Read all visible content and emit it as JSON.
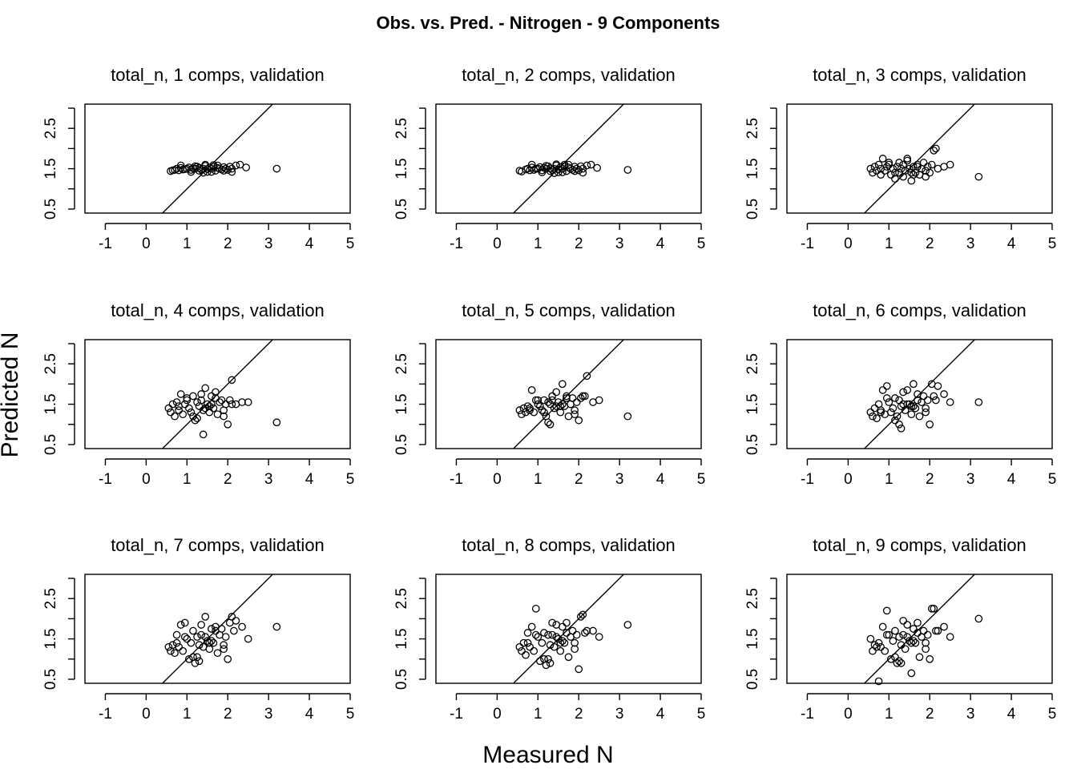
{
  "title": "Obs. vs. Pred. - Nitrogen - 9 Components",
  "xlabel": "Measured N",
  "ylabel": "Predicted N",
  "chart_data": {
    "type": "scatter",
    "title": "Obs. vs. Pred. - Nitrogen - 9 Components",
    "xlabel": "Measured N",
    "ylabel": "Predicted N",
    "xlim": [
      -1.5,
      5
    ],
    "ylim": [
      0.4,
      3.1
    ],
    "x_ticks": [
      "-1",
      "0",
      "1",
      "2",
      "3",
      "4",
      "5"
    ],
    "y_ticks": [
      "0.5",
      "1.5",
      "2.5"
    ],
    "reference_line": "y = x",
    "grid": false,
    "panels": [
      {
        "title": "total_n, 1 comps, validation",
        "x": [
          0.6,
          0.65,
          0.7,
          0.75,
          0.8,
          0.85,
          0.9,
          0.95,
          1.0,
          1.05,
          1.1,
          1.15,
          1.2,
          1.25,
          1.3,
          1.35,
          1.4,
          1.45,
          1.5,
          1.55,
          1.6,
          1.65,
          1.7,
          1.75,
          1.8,
          1.85,
          1.9,
          1.95,
          2.0,
          2.05,
          2.1,
          2.2,
          2.3,
          2.45,
          0.85,
          1.1,
          1.3,
          1.45,
          1.6,
          1.75,
          1.9,
          2.1,
          1.2,
          1.5,
          1.65,
          1.4,
          3.2
        ],
        "y": [
          1.44,
          1.46,
          1.47,
          1.5,
          1.46,
          1.52,
          1.48,
          1.49,
          1.5,
          1.53,
          1.47,
          1.51,
          1.5,
          1.55,
          1.52,
          1.48,
          1.5,
          1.57,
          1.49,
          1.53,
          1.5,
          1.55,
          1.45,
          1.52,
          1.5,
          1.48,
          1.54,
          1.5,
          1.47,
          1.55,
          1.5,
          1.58,
          1.6,
          1.53,
          1.58,
          1.42,
          1.45,
          1.6,
          1.42,
          1.58,
          1.45,
          1.42,
          1.56,
          1.42,
          1.59,
          1.4,
          1.5
        ]
      },
      {
        "title": "total_n, 2 comps, validation",
        "x": [
          0.55,
          0.6,
          0.7,
          0.75,
          0.8,
          0.85,
          0.9,
          0.95,
          1.0,
          1.05,
          1.1,
          1.15,
          1.2,
          1.25,
          1.3,
          1.35,
          1.4,
          1.45,
          1.5,
          1.55,
          1.6,
          1.65,
          1.7,
          1.75,
          1.8,
          1.85,
          1.9,
          1.95,
          2.0,
          2.05,
          2.1,
          2.2,
          2.3,
          2.45,
          0.85,
          1.1,
          1.3,
          1.45,
          1.6,
          1.75,
          1.9,
          2.1,
          1.2,
          1.5,
          1.65,
          1.4,
          3.2
        ],
        "y": [
          1.45,
          1.43,
          1.48,
          1.5,
          1.46,
          1.53,
          1.47,
          1.5,
          1.5,
          1.54,
          1.46,
          1.52,
          1.5,
          1.56,
          1.51,
          1.47,
          1.5,
          1.58,
          1.48,
          1.54,
          1.5,
          1.56,
          1.44,
          1.53,
          1.5,
          1.47,
          1.55,
          1.5,
          1.46,
          1.56,
          1.5,
          1.58,
          1.6,
          1.52,
          1.6,
          1.41,
          1.44,
          1.61,
          1.41,
          1.6,
          1.44,
          1.4,
          1.57,
          1.41,
          1.6,
          1.39,
          1.47
        ]
      },
      {
        "title": "total_n, 3 comps, validation",
        "x": [
          0.55,
          0.6,
          0.65,
          0.7,
          0.75,
          0.8,
          0.85,
          0.9,
          0.95,
          1.0,
          1.05,
          1.1,
          1.15,
          1.2,
          1.25,
          1.3,
          1.35,
          1.4,
          1.45,
          1.5,
          1.55,
          1.6,
          1.65,
          1.7,
          1.75,
          1.8,
          1.85,
          1.9,
          1.95,
          2.0,
          2.05,
          2.1,
          2.2,
          2.35,
          2.5,
          0.8,
          1.0,
          1.15,
          1.35,
          1.55,
          1.7,
          1.9,
          2.15,
          1.45,
          1.6,
          1.25,
          3.2
        ],
        "y": [
          1.5,
          1.4,
          1.55,
          1.45,
          1.6,
          1.5,
          1.75,
          1.45,
          1.55,
          1.6,
          1.35,
          1.5,
          1.4,
          1.55,
          1.65,
          1.5,
          1.3,
          1.45,
          1.7,
          1.5,
          1.2,
          1.55,
          1.4,
          1.6,
          1.35,
          1.5,
          1.65,
          1.45,
          1.55,
          1.4,
          1.6,
          1.95,
          1.5,
          1.55,
          1.6,
          1.35,
          1.65,
          1.25,
          1.6,
          1.4,
          1.55,
          1.3,
          2.0,
          1.75,
          1.35,
          1.4,
          1.3
        ]
      },
      {
        "title": "total_n, 4 comps, validation",
        "x": [
          0.55,
          0.6,
          0.65,
          0.7,
          0.75,
          0.8,
          0.85,
          0.9,
          0.95,
          1.0,
          1.05,
          1.1,
          1.15,
          1.2,
          1.25,
          1.3,
          1.35,
          1.4,
          1.45,
          1.5,
          1.55,
          1.6,
          1.65,
          1.7,
          1.75,
          1.8,
          1.85,
          1.9,
          1.95,
          2.0,
          2.05,
          2.1,
          2.2,
          2.35,
          2.5,
          0.8,
          1.0,
          1.15,
          1.35,
          1.55,
          1.7,
          1.9,
          2.1,
          1.45,
          1.6,
          1.25,
          1.4,
          3.2
        ],
        "y": [
          1.4,
          1.3,
          1.5,
          1.2,
          1.55,
          1.35,
          1.75,
          1.25,
          1.5,
          1.6,
          1.4,
          1.3,
          1.7,
          1.1,
          1.55,
          1.45,
          1.6,
          1.35,
          1.9,
          1.5,
          1.3,
          1.7,
          1.4,
          1.8,
          1.25,
          1.55,
          1.6,
          1.2,
          1.5,
          1.0,
          1.6,
          2.1,
          1.5,
          1.55,
          1.55,
          1.45,
          1.65,
          1.2,
          1.75,
          1.45,
          1.65,
          1.35,
          1.5,
          1.4,
          1.5,
          1.15,
          0.75,
          1.05
        ]
      },
      {
        "title": "total_n, 5 comps, validation",
        "x": [
          0.55,
          0.6,
          0.65,
          0.7,
          0.75,
          0.8,
          0.85,
          0.9,
          0.95,
          1.0,
          1.05,
          1.1,
          1.15,
          1.2,
          1.25,
          1.3,
          1.35,
          1.4,
          1.45,
          1.5,
          1.55,
          1.6,
          1.65,
          1.7,
          1.75,
          1.8,
          1.85,
          1.9,
          1.95,
          2.0,
          2.05,
          2.1,
          2.2,
          2.35,
          2.5,
          0.8,
          1.0,
          1.15,
          1.35,
          1.55,
          1.7,
          1.9,
          2.15,
          1.45,
          1.6,
          1.25,
          1.3,
          3.2
        ],
        "y": [
          1.35,
          1.25,
          1.4,
          1.3,
          1.45,
          1.35,
          1.85,
          1.3,
          1.6,
          1.5,
          1.45,
          1.35,
          1.6,
          1.2,
          1.55,
          1.5,
          1.6,
          1.4,
          1.8,
          1.55,
          1.3,
          2.0,
          1.45,
          1.7,
          1.2,
          1.5,
          1.65,
          1.25,
          1.55,
          1.1,
          1.65,
          1.7,
          2.2,
          1.55,
          1.6,
          1.4,
          1.6,
          1.3,
          1.7,
          1.45,
          1.65,
          1.35,
          1.7,
          1.45,
          1.5,
          1.05,
          1.0,
          1.2
        ]
      },
      {
        "title": "total_n, 6 comps, validation",
        "x": [
          0.55,
          0.6,
          0.65,
          0.7,
          0.75,
          0.8,
          0.85,
          0.9,
          0.95,
          1.0,
          1.05,
          1.1,
          1.15,
          1.2,
          1.25,
          1.3,
          1.35,
          1.4,
          1.45,
          1.5,
          1.55,
          1.6,
          1.65,
          1.7,
          1.75,
          1.8,
          1.85,
          1.9,
          1.95,
          2.0,
          2.05,
          2.1,
          2.2,
          2.35,
          2.5,
          0.8,
          0.95,
          1.15,
          1.35,
          1.55,
          1.7,
          1.9,
          2.15,
          1.45,
          1.6,
          1.25,
          1.3,
          3.2
        ],
        "y": [
          1.3,
          1.2,
          1.4,
          1.15,
          1.5,
          1.3,
          1.85,
          1.25,
          1.95,
          1.55,
          1.3,
          1.4,
          1.65,
          1.2,
          1.6,
          1.45,
          1.5,
          1.35,
          1.85,
          1.5,
          1.25,
          2.0,
          1.4,
          1.75,
          1.2,
          1.55,
          1.7,
          1.3,
          1.6,
          1.0,
          2.0,
          1.7,
          1.95,
          1.75,
          1.55,
          1.35,
          1.65,
          1.1,
          1.8,
          1.45,
          1.6,
          1.4,
          1.6,
          1.5,
          1.45,
          1.0,
          0.9,
          1.55
        ]
      },
      {
        "title": "total_n, 7 comps, validation",
        "x": [
          0.55,
          0.6,
          0.65,
          0.7,
          0.75,
          0.8,
          0.85,
          0.9,
          0.95,
          1.0,
          1.05,
          1.1,
          1.15,
          1.2,
          1.25,
          1.3,
          1.35,
          1.4,
          1.45,
          1.5,
          1.55,
          1.6,
          1.65,
          1.7,
          1.75,
          1.8,
          1.85,
          1.9,
          1.95,
          2.0,
          2.05,
          2.1,
          2.2,
          2.35,
          2.5,
          0.75,
          0.95,
          1.15,
          1.35,
          1.55,
          1.7,
          1.9,
          2.15,
          1.45,
          1.6,
          1.25,
          1.3,
          3.2
        ],
        "y": [
          1.3,
          1.2,
          1.35,
          1.15,
          1.6,
          1.3,
          1.85,
          1.2,
          1.9,
          1.5,
          1.0,
          1.4,
          1.7,
          0.9,
          1.55,
          1.35,
          1.6,
          1.3,
          2.05,
          1.45,
          1.25,
          1.75,
          1.4,
          1.8,
          1.15,
          1.6,
          1.75,
          1.25,
          1.55,
          1.0,
          1.9,
          2.05,
          1.95,
          1.8,
          1.5,
          1.4,
          1.55,
          1.05,
          1.85,
          1.4,
          1.7,
          1.35,
          1.7,
          1.55,
          1.45,
          1.05,
          0.95,
          1.8
        ]
      },
      {
        "title": "total_n, 8 comps, validation",
        "x": [
          0.55,
          0.6,
          0.65,
          0.7,
          0.75,
          0.8,
          0.85,
          0.9,
          0.95,
          1.0,
          1.05,
          1.1,
          1.15,
          1.2,
          1.25,
          1.3,
          1.35,
          1.4,
          1.45,
          1.5,
          1.55,
          1.6,
          1.65,
          1.7,
          1.75,
          1.8,
          1.85,
          1.9,
          1.95,
          2.0,
          2.05,
          2.1,
          2.2,
          2.35,
          2.5,
          0.75,
          0.95,
          1.15,
          1.35,
          1.55,
          1.7,
          1.9,
          2.15,
          1.45,
          1.6,
          1.25,
          1.3,
          3.2
        ],
        "y": [
          1.3,
          1.2,
          1.4,
          1.1,
          1.65,
          1.3,
          1.8,
          1.2,
          2.25,
          1.55,
          0.95,
          1.4,
          1.65,
          0.85,
          1.6,
          1.35,
          1.6,
          1.3,
          1.85,
          1.5,
          1.2,
          1.8,
          1.4,
          1.9,
          1.05,
          1.55,
          1.7,
          1.25,
          1.6,
          0.75,
          2.05,
          2.1,
          1.7,
          1.7,
          1.55,
          1.4,
          1.6,
          1.0,
          1.9,
          1.4,
          1.65,
          1.4,
          1.65,
          1.55,
          1.45,
          1.0,
          0.9,
          1.85
        ]
      },
      {
        "title": "total_n, 9 comps, validation",
        "x": [
          0.55,
          0.6,
          0.65,
          0.7,
          0.75,
          0.8,
          0.85,
          0.9,
          0.95,
          1.0,
          1.05,
          1.1,
          1.15,
          1.2,
          1.25,
          1.3,
          1.35,
          1.4,
          1.45,
          1.5,
          1.55,
          1.6,
          1.65,
          1.7,
          1.75,
          1.8,
          1.85,
          1.9,
          1.95,
          2.0,
          2.05,
          2.1,
          2.2,
          2.35,
          2.5,
          0.75,
          0.95,
          1.15,
          1.35,
          1.55,
          1.7,
          1.9,
          2.15,
          1.45,
          1.6,
          1.25,
          1.3,
          3.2
        ],
        "y": [
          1.5,
          1.2,
          1.35,
          1.3,
          0.45,
          1.3,
          1.8,
          1.2,
          2.2,
          1.6,
          1.0,
          1.45,
          1.7,
          0.9,
          1.55,
          1.35,
          1.6,
          1.25,
          1.85,
          1.45,
          0.65,
          1.75,
          1.4,
          1.9,
          1.05,
          1.55,
          1.7,
          1.25,
          1.6,
          1.0,
          2.25,
          2.25,
          1.7,
          1.8,
          1.55,
          1.4,
          1.6,
          1.05,
          1.95,
          1.4,
          1.65,
          1.4,
          1.7,
          1.55,
          1.45,
          0.95,
          0.9,
          2.0
        ]
      }
    ]
  }
}
